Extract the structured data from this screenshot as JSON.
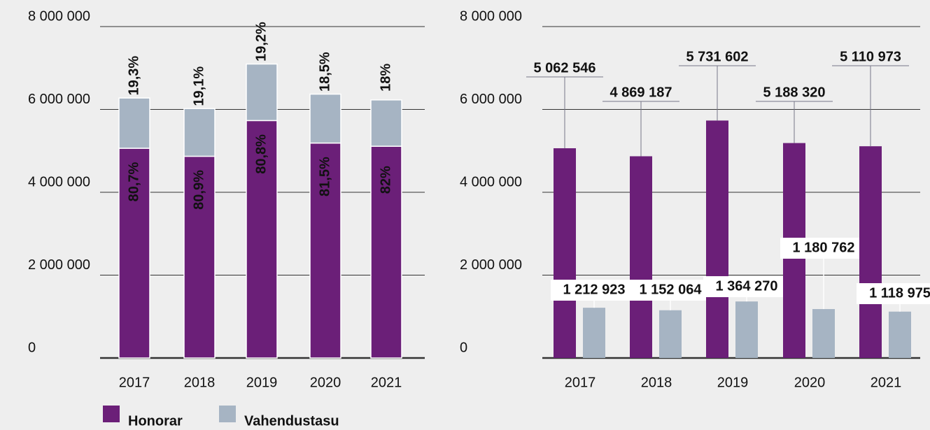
{
  "chart_data": [
    {
      "type": "stacked-bar",
      "categories": [
        "2017",
        "2018",
        "2019",
        "2020",
        "2021"
      ],
      "series": [
        {
          "name": "Honorar",
          "color": "#6b1f78",
          "values": [
            5062546,
            4869187,
            5731602,
            5188320,
            5110973
          ],
          "share_labels": [
            "80,7%",
            "80,9%",
            "80,8%",
            "81,5%",
            "82%"
          ]
        },
        {
          "name": "Vahendustasu",
          "color": "#a6b4c3",
          "values": [
            1212923,
            1152064,
            1364270,
            1180762,
            1118975
          ],
          "share_labels": [
            "19,3%",
            "19,1%",
            "19,2%",
            "18,5%",
            "18%"
          ]
        }
      ],
      "ylim": [
        0,
        8000000
      ],
      "yticks": [
        0,
        {
          "value": 2000000,
          "label": "2 000 000"
        },
        {
          "value": 4000000,
          "label": "4 000 000"
        },
        {
          "value": 6000000,
          "label": "6 000 000"
        },
        {
          "value": 8000000,
          "label": "8 000 000"
        }
      ],
      "grid": true,
      "legend": "bottom-left"
    },
    {
      "type": "grouped-bar",
      "categories": [
        "2017",
        "2018",
        "2019",
        "2020",
        "2021"
      ],
      "series": [
        {
          "name": "Honorar",
          "color": "#6b1f78",
          "values": [
            5062546,
            4869187,
            5731602,
            5188320,
            5110973
          ],
          "value_labels": [
            "5 062 546",
            "4 869 187",
            "5 731 602",
            "5 188 320",
            "5 110 973"
          ]
        },
        {
          "name": "Vahendustasu",
          "color": "#a6b4c3",
          "values": [
            1212923,
            1152064,
            1364270,
            1180762,
            1118975
          ],
          "value_labels": [
            "1 212 923",
            "1 152 064",
            "1 364 270",
            "1 180 762",
            "1 118 975"
          ]
        }
      ],
      "ylim": [
        0,
        8000000
      ],
      "yticks": [
        0,
        {
          "value": 2000000,
          "label": "2 000 000"
        },
        {
          "value": 4000000,
          "label": "4 000 000"
        },
        {
          "value": 6000000,
          "label": "6 000 000"
        },
        {
          "value": 8000000,
          "label": "8 000 000"
        }
      ],
      "grid": true
    }
  ]
}
